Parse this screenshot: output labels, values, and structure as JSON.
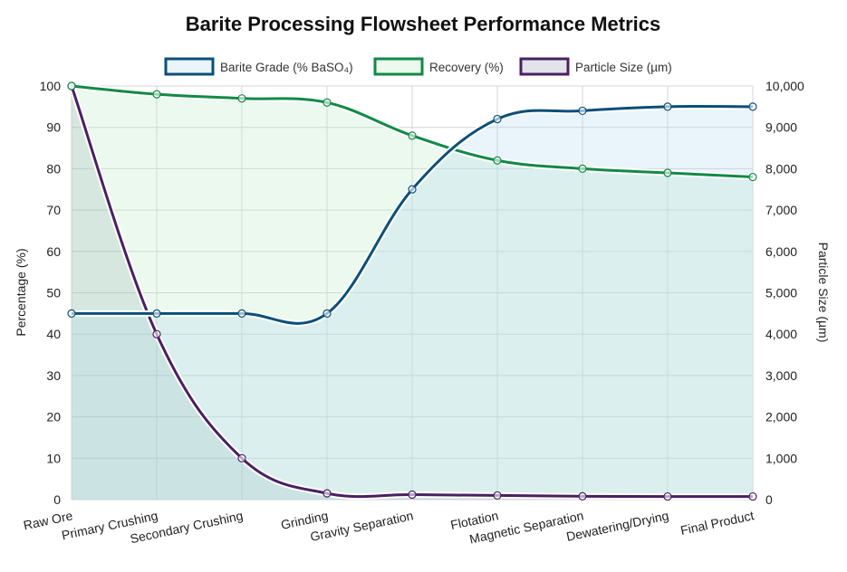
{
  "chart_data": {
    "type": "line",
    "title": "Barite Processing Flowsheet Performance Metrics",
    "categories": [
      "Raw Ore",
      "Primary Crushing",
      "Secondary Crushing",
      "Grinding",
      "Gravity Separation",
      "Flotation",
      "Magnetic Separation",
      "Dewatering/Drying",
      "Final Product"
    ],
    "series": [
      {
        "name": "Barite Grade (% BaSO₄)",
        "axis": "left",
        "values": [
          45,
          45,
          45,
          45,
          75,
          92,
          94,
          95,
          95
        ],
        "color": "#0b4f7a",
        "fill": "rgba(173, 216, 240, 0.25)"
      },
      {
        "name": "Recovery (%)",
        "axis": "left",
        "values": [
          100,
          98,
          97,
          96,
          88,
          82,
          80,
          79,
          78
        ],
        "color": "#118a45",
        "fill": "rgba(190, 236, 200, 0.30)"
      },
      {
        "name": "Particle Size (µm)",
        "axis": "right",
        "values": [
          10000,
          4000,
          1000,
          150,
          120,
          100,
          80,
          75,
          75
        ],
        "color": "#4a1f63",
        "fill": "rgba(90, 110, 140, 0.18)"
      }
    ],
    "ylabel_left": "Percentage (%)",
    "ylabel_right": "Particle Size (µm)",
    "ylim_left": [
      0,
      100
    ],
    "ylim_right": [
      0,
      10000
    ],
    "yticks_left": [
      "0",
      "10",
      "20",
      "30",
      "40",
      "50",
      "60",
      "70",
      "80",
      "90",
      "100"
    ],
    "yticks_right": [
      "0",
      "1,000",
      "2,000",
      "3,000",
      "4,000",
      "5,000",
      "6,000",
      "7,000",
      "8,000",
      "9,000",
      "10,000"
    ],
    "grid": true,
    "legend": "top"
  }
}
